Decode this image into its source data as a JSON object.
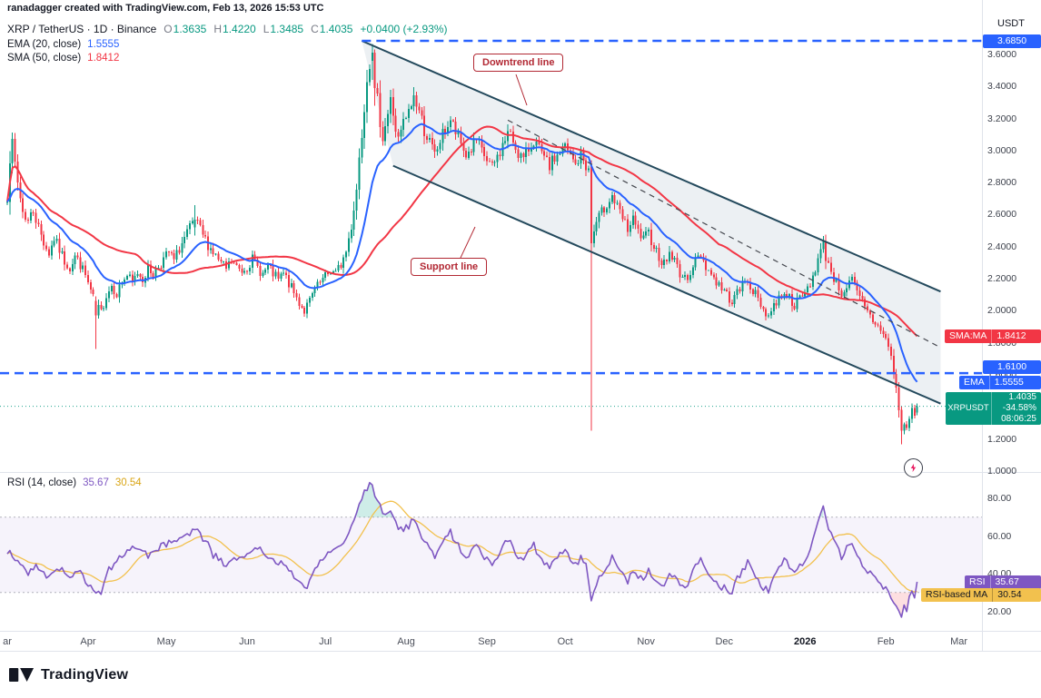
{
  "header": {
    "watermark": "ranadagger created with TradingView.com, Feb 13, 2026 15:53 UTC",
    "symbol_line": {
      "title": "XRP / TetherUS · 1D · Binance",
      "o_label": "O",
      "o": "1.3635",
      "h_label": "H",
      "h": "1.4220",
      "l_label": "L",
      "l": "1.3485",
      "c_label": "C",
      "c": "1.4035",
      "change": "+0.0400 (+2.93%)"
    },
    "ema_line": {
      "label": "EMA (20, close)",
      "value": "1.5555"
    },
    "sma_line": {
      "label": "SMA (50, close)",
      "value": "1.8412"
    },
    "axis_currency": "USDT"
  },
  "rsi_header": {
    "label": "RSI (14, close)",
    "value1": "35.67",
    "value2": "30.54"
  },
  "badges": {
    "resistance": {
      "value": "3.6850"
    },
    "sma": {
      "label": "SMA:MA",
      "value": "1.8412"
    },
    "level": {
      "value": "1.6100"
    },
    "ema": {
      "label": "EMA",
      "value": "1.5555"
    },
    "symbol": {
      "label": "XRPUSDT",
      "price": "1.4035",
      "change": "-34.58%",
      "countdown": "08:06:25"
    },
    "rsi": {
      "label": "RSI",
      "value": "35.67"
    },
    "rsi_ma": {
      "label": "RSI-based MA",
      "value": "30.54"
    }
  },
  "annotations": {
    "downtrend": "Downtrend line",
    "support": "Support line"
  },
  "footer": {
    "logo_text": "TradingView"
  },
  "chart_data": {
    "type": "candlestick",
    "title": "XRP / TetherUS · 1D · Binance",
    "panels": [
      "price",
      "RSI (14)"
    ],
    "ylim": [
      1.0,
      3.7
    ],
    "rsi_ylim": [
      10,
      90
    ],
    "price_ticks": [
      3.6,
      3.4,
      3.2,
      3.0,
      2.8,
      2.6,
      2.4,
      2.2,
      2.0,
      1.8,
      1.6,
      1.4,
      1.2,
      1.0
    ],
    "rsi_ticks": [
      80,
      60,
      40,
      20
    ],
    "months": [
      {
        "label": "ar",
        "day": 0
      },
      {
        "label": "Apr",
        "day": 31
      },
      {
        "label": "May",
        "day": 61
      },
      {
        "label": "Jun",
        "day": 92
      },
      {
        "label": "Jul",
        "day": 122
      },
      {
        "label": "Aug",
        "day": 153
      },
      {
        "label": "Sep",
        "day": 184
      },
      {
        "label": "Oct",
        "day": 214
      },
      {
        "label": "Nov",
        "day": 245
      },
      {
        "label": "Dec",
        "day": 275
      },
      {
        "label": "2026",
        "day": 306,
        "bold": true
      },
      {
        "label": "Feb",
        "day": 337
      },
      {
        "label": "Mar",
        "day": 365
      }
    ],
    "levels": {
      "resistance": 3.685,
      "resistance_start_day": 136,
      "support": 1.61,
      "last_price": 1.4035
    },
    "channel": {
      "upper": [
        [
          136,
          3.685
        ],
        [
          358,
          2.12
        ]
      ],
      "lower": [
        [
          148,
          2.905
        ],
        [
          358,
          1.42
        ]
      ],
      "mid": [
        [
          192,
          3.19
        ],
        [
          358,
          1.77
        ]
      ]
    },
    "colors": {
      "up": "#089981",
      "down": "#f23645",
      "ema": "#2962ff",
      "sma": "#f23645",
      "level": "#2962ff",
      "channel": "#23495c",
      "channel_fill": "rgba(70,110,135,0.10)",
      "mid_line": "#45484f",
      "rsi": "#7e57c2",
      "rsi_ma": "#f2c14e",
      "last_price": "#089981",
      "rsi_band_fill": "rgba(126,87,194,0.07)",
      "rsi_band_line": "#787b86",
      "overbought_fill": "rgba(34,171,148,0.22)",
      "oversold_fill": "rgba(242,54,69,0.16)"
    },
    "price_anchors": [
      [
        0,
        2.72
      ],
      [
        1,
        2.96
      ],
      [
        2,
        3.03
      ],
      [
        4,
        2.8
      ],
      [
        6,
        2.62
      ],
      [
        8,
        2.56
      ],
      [
        10,
        2.63
      ],
      [
        12,
        2.52
      ],
      [
        14,
        2.43
      ],
      [
        16,
        2.36
      ],
      [
        18,
        2.45
      ],
      [
        20,
        2.38
      ],
      [
        22,
        2.31
      ],
      [
        24,
        2.27
      ],
      [
        26,
        2.34
      ],
      [
        28,
        2.29
      ],
      [
        30,
        2.22
      ],
      [
        32,
        2.12
      ],
      [
        34,
        2.03
      ],
      [
        36,
        1.99
      ],
      [
        38,
        2.1
      ],
      [
        40,
        2.16
      ],
      [
        42,
        2.11
      ],
      [
        44,
        2.18
      ],
      [
        46,
        2.22
      ],
      [
        48,
        2.17
      ],
      [
        50,
        2.24
      ],
      [
        52,
        2.2
      ],
      [
        54,
        2.26
      ],
      [
        56,
        2.23
      ],
      [
        58,
        2.28
      ],
      [
        60,
        2.32
      ],
      [
        62,
        2.36
      ],
      [
        64,
        2.31
      ],
      [
        66,
        2.39
      ],
      [
        68,
        2.45
      ],
      [
        70,
        2.51
      ],
      [
        72,
        2.56
      ],
      [
        74,
        2.5
      ],
      [
        76,
        2.44
      ],
      [
        78,
        2.39
      ],
      [
        80,
        2.34
      ],
      [
        82,
        2.29
      ],
      [
        84,
        2.26
      ],
      [
        86,
        2.31
      ],
      [
        88,
        2.27
      ],
      [
        90,
        2.25
      ],
      [
        92,
        2.28
      ],
      [
        94,
        2.32
      ],
      [
        96,
        2.27
      ],
      [
        98,
        2.23
      ],
      [
        100,
        2.27
      ],
      [
        102,
        2.23
      ],
      [
        104,
        2.19
      ],
      [
        106,
        2.23
      ],
      [
        108,
        2.17
      ],
      [
        110,
        2.11
      ],
      [
        112,
        2.05
      ],
      [
        114,
        2.0
      ],
      [
        116,
        2.06
      ],
      [
        118,
        2.13
      ],
      [
        120,
        2.17
      ],
      [
        122,
        2.21
      ],
      [
        124,
        2.25
      ],
      [
        126,
        2.23
      ],
      [
        128,
        2.29
      ],
      [
        130,
        2.37
      ],
      [
        132,
        2.53
      ],
      [
        134,
        2.76
      ],
      [
        135,
        2.96
      ],
      [
        136,
        3.11
      ],
      [
        137,
        3.29
      ],
      [
        138,
        3.46
      ],
      [
        139,
        3.56
      ],
      [
        140,
        3.61
      ],
      [
        141,
        3.39
      ],
      [
        142,
        3.31
      ],
      [
        143,
        3.19
      ],
      [
        144,
        3.09
      ],
      [
        145,
        3.16
      ],
      [
        146,
        3.23
      ],
      [
        147,
        3.31
      ],
      [
        148,
        3.23
      ],
      [
        149,
        3.13
      ],
      [
        150,
        3.06
      ],
      [
        151,
        3.11
      ],
      [
        152,
        3.17
      ],
      [
        154,
        3.23
      ],
      [
        156,
        3.34
      ],
      [
        158,
        3.25
      ],
      [
        160,
        3.13
      ],
      [
        162,
        3.05
      ],
      [
        164,
        2.97
      ],
      [
        166,
        3.06
      ],
      [
        168,
        3.13
      ],
      [
        170,
        3.19
      ],
      [
        172,
        3.11
      ],
      [
        174,
        3.04
      ],
      [
        176,
        2.97
      ],
      [
        178,
        3.01
      ],
      [
        180,
        3.06
      ],
      [
        182,
        2.99
      ],
      [
        184,
        2.94
      ],
      [
        186,
        2.89
      ],
      [
        188,
        2.96
      ],
      [
        190,
        3.03
      ],
      [
        192,
        3.11
      ],
      [
        194,
        3.06
      ],
      [
        196,
        2.99
      ],
      [
        198,
        2.94
      ],
      [
        200,
        3.01
      ],
      [
        202,
        3.07
      ],
      [
        204,
        3.0
      ],
      [
        206,
        2.94
      ],
      [
        208,
        2.9
      ],
      [
        210,
        2.95
      ],
      [
        212,
        2.99
      ],
      [
        214,
        3.02
      ],
      [
        216,
        2.96
      ],
      [
        218,
        2.91
      ],
      [
        220,
        2.97
      ],
      [
        222,
        2.91
      ],
      [
        223,
        2.87
      ],
      [
        224,
        2.42
      ],
      [
        225,
        2.49
      ],
      [
        226,
        2.55
      ],
      [
        228,
        2.61
      ],
      [
        230,
        2.67
      ],
      [
        232,
        2.72
      ],
      [
        234,
        2.64
      ],
      [
        236,
        2.57
      ],
      [
        238,
        2.51
      ],
      [
        240,
        2.56
      ],
      [
        242,
        2.49
      ],
      [
        244,
        2.44
      ],
      [
        246,
        2.48
      ],
      [
        248,
        2.41
      ],
      [
        250,
        2.34
      ],
      [
        252,
        2.29
      ],
      [
        254,
        2.36
      ],
      [
        256,
        2.31
      ],
      [
        258,
        2.24
      ],
      [
        260,
        2.19
      ],
      [
        262,
        2.25
      ],
      [
        264,
        2.31
      ],
      [
        266,
        2.35
      ],
      [
        268,
        2.28
      ],
      [
        270,
        2.23
      ],
      [
        272,
        2.18
      ],
      [
        274,
        2.14
      ],
      [
        276,
        2.1
      ],
      [
        278,
        2.06
      ],
      [
        280,
        2.11
      ],
      [
        282,
        2.16
      ],
      [
        284,
        2.19
      ],
      [
        286,
        2.13
      ],
      [
        288,
        2.07
      ],
      [
        290,
        2.01
      ],
      [
        292,
        1.97
      ],
      [
        294,
        2.03
      ],
      [
        296,
        2.08
      ],
      [
        298,
        2.12
      ],
      [
        300,
        2.08
      ],
      [
        302,
        2.04
      ],
      [
        304,
        2.07
      ],
      [
        306,
        2.11
      ],
      [
        308,
        2.17
      ],
      [
        310,
        2.27
      ],
      [
        312,
        2.37
      ],
      [
        313,
        2.41
      ],
      [
        314,
        2.34
      ],
      [
        316,
        2.25
      ],
      [
        318,
        2.17
      ],
      [
        320,
        2.11
      ],
      [
        322,
        2.15
      ],
      [
        324,
        2.19
      ],
      [
        326,
        2.11
      ],
      [
        328,
        2.05
      ],
      [
        330,
        1.99
      ],
      [
        332,
        1.94
      ],
      [
        334,
        1.9
      ],
      [
        336,
        1.87
      ],
      [
        337,
        1.83
      ],
      [
        338,
        1.77
      ],
      [
        339,
        1.71
      ],
      [
        340,
        1.61
      ],
      [
        341,
        1.51
      ],
      [
        342,
        1.39
      ],
      [
        343,
        1.25
      ],
      [
        344,
        1.29
      ],
      [
        345,
        1.27
      ],
      [
        346,
        1.33
      ],
      [
        347,
        1.38
      ],
      [
        348,
        1.36
      ],
      [
        349,
        1.4035
      ]
    ],
    "special_candles": {
      "34": [
        2.06,
        2.09,
        1.76,
        1.97
      ],
      "72": [
        2.52,
        2.66,
        2.47,
        2.57
      ],
      "140": [
        3.56,
        3.665,
        3.44,
        3.61
      ],
      "141": [
        3.61,
        3.63,
        3.28,
        3.39
      ],
      "224": [
        2.9,
        2.94,
        1.25,
        2.42
      ],
      "343": [
        1.38,
        1.4,
        1.165,
        1.25
      ],
      "349": [
        1.3635,
        1.422,
        1.3485,
        1.4035
      ]
    },
    "rsi_anchors": [
      [
        0,
        52
      ],
      [
        4,
        46
      ],
      [
        8,
        40
      ],
      [
        12,
        44
      ],
      [
        16,
        38
      ],
      [
        20,
        42
      ],
      [
        24,
        37
      ],
      [
        28,
        41
      ],
      [
        31,
        35
      ],
      [
        34,
        30
      ],
      [
        36,
        28
      ],
      [
        38,
        41
      ],
      [
        42,
        47
      ],
      [
        46,
        51
      ],
      [
        50,
        55
      ],
      [
        54,
        50
      ],
      [
        58,
        54
      ],
      [
        62,
        56
      ],
      [
        66,
        59
      ],
      [
        70,
        62
      ],
      [
        72,
        65
      ],
      [
        76,
        56
      ],
      [
        80,
        49
      ],
      [
        84,
        45
      ],
      [
        88,
        48
      ],
      [
        92,
        51
      ],
      [
        96,
        54
      ],
      [
        100,
        49
      ],
      [
        104,
        46
      ],
      [
        108,
        42
      ],
      [
        112,
        36
      ],
      [
        114,
        32
      ],
      [
        118,
        43
      ],
      [
        122,
        49
      ],
      [
        126,
        53
      ],
      [
        130,
        59
      ],
      [
        132,
        65
      ],
      [
        134,
        73
      ],
      [
        136,
        81
      ],
      [
        138,
        86
      ],
      [
        140,
        88
      ],
      [
        141,
        82
      ],
      [
        143,
        75
      ],
      [
        145,
        70
      ],
      [
        147,
        73
      ],
      [
        149,
        67
      ],
      [
        151,
        63
      ],
      [
        154,
        65
      ],
      [
        156,
        69
      ],
      [
        158,
        63
      ],
      [
        160,
        57
      ],
      [
        162,
        53
      ],
      [
        164,
        49
      ],
      [
        166,
        55
      ],
      [
        168,
        59
      ],
      [
        170,
        62
      ],
      [
        172,
        57
      ],
      [
        174,
        53
      ],
      [
        176,
        49
      ],
      [
        178,
        52
      ],
      [
        180,
        55
      ],
      [
        182,
        51
      ],
      [
        184,
        48
      ],
      [
        186,
        45
      ],
      [
        188,
        50
      ],
      [
        190,
        54
      ],
      [
        192,
        58
      ],
      [
        194,
        54
      ],
      [
        196,
        49
      ],
      [
        198,
        46
      ],
      [
        200,
        51
      ],
      [
        202,
        55
      ],
      [
        204,
        50
      ],
      [
        206,
        46
      ],
      [
        208,
        43
      ],
      [
        210,
        47
      ],
      [
        212,
        50
      ],
      [
        214,
        52
      ],
      [
        216,
        47
      ],
      [
        218,
        44
      ],
      [
        220,
        49
      ],
      [
        222,
        45
      ],
      [
        224,
        26
      ],
      [
        226,
        34
      ],
      [
        228,
        40
      ],
      [
        230,
        44
      ],
      [
        232,
        48
      ],
      [
        234,
        43
      ],
      [
        236,
        39
      ],
      [
        238,
        36
      ],
      [
        240,
        41
      ],
      [
        242,
        38
      ],
      [
        244,
        38
      ],
      [
        246,
        42
      ],
      [
        248,
        38
      ],
      [
        250,
        35
      ],
      [
        252,
        33
      ],
      [
        254,
        40
      ],
      [
        256,
        37
      ],
      [
        258,
        34
      ],
      [
        260,
        32
      ],
      [
        262,
        39
      ],
      [
        264,
        44
      ],
      [
        266,
        48
      ],
      [
        268,
        42
      ],
      [
        270,
        38
      ],
      [
        272,
        35
      ],
      [
        274,
        33
      ],
      [
        276,
        32
      ],
      [
        278,
        30
      ],
      [
        280,
        37
      ],
      [
        282,
        42
      ],
      [
        284,
        46
      ],
      [
        286,
        41
      ],
      [
        288,
        36
      ],
      [
        290,
        33
      ],
      [
        292,
        31
      ],
      [
        294,
        39
      ],
      [
        296,
        44
      ],
      [
        298,
        48
      ],
      [
        300,
        44
      ],
      [
        302,
        41
      ],
      [
        304,
        44
      ],
      [
        306,
        48
      ],
      [
        308,
        54
      ],
      [
        310,
        62
      ],
      [
        312,
        70
      ],
      [
        313,
        75
      ],
      [
        314,
        68
      ],
      [
        316,
        60
      ],
      [
        318,
        54
      ],
      [
        320,
        49
      ],
      [
        322,
        53
      ],
      [
        324,
        57
      ],
      [
        326,
        50
      ],
      [
        328,
        45
      ],
      [
        330,
        41
      ],
      [
        332,
        38
      ],
      [
        334,
        35
      ],
      [
        336,
        33
      ],
      [
        338,
        30
      ],
      [
        340,
        26
      ],
      [
        342,
        21
      ],
      [
        343,
        17
      ],
      [
        344,
        22
      ],
      [
        345,
        21
      ],
      [
        346,
        26
      ],
      [
        347,
        31
      ],
      [
        348,
        29
      ],
      [
        349,
        35.67
      ]
    ],
    "indicators": {
      "ema_period": 20,
      "sma_period": 50,
      "rsi_period": 14,
      "rsi_ma_period": 14
    },
    "last_values": {
      "ema": 1.5555,
      "sma": 1.8412,
      "rsi": 35.67,
      "rsi_ma": 30.54
    }
  }
}
